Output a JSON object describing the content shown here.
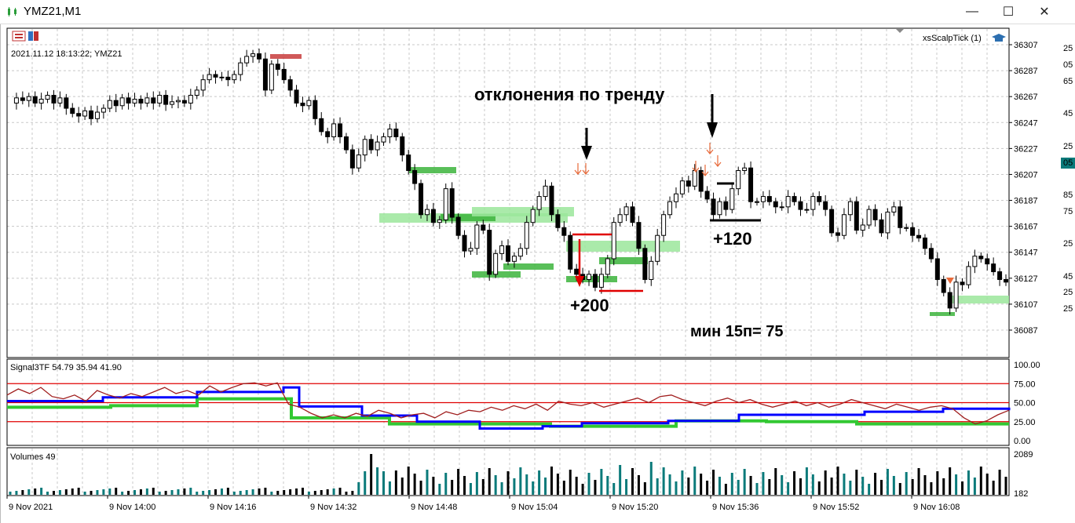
{
  "window": {
    "title": "YMZ21,M1",
    "minimize_symbol": "—",
    "maximize_symbol": "☐",
    "close_symbol": "✕"
  },
  "chart": {
    "timestamp_label": "2021.11.12 18:13:22; YMZ21",
    "indicator_name": "xsScalpTick (1)",
    "price_ticks": [
      "36307",
      "36287",
      "36267",
      "36247",
      "36227",
      "36207",
      "36187",
      "36167",
      "36147",
      "36127",
      "36107",
      "36087"
    ],
    "price_range": [
      36077,
      36317
    ],
    "annotations": {
      "trend_text": "отклонения по тренду",
      "plus200": "+200",
      "plus120": "+120",
      "min_text": "мин 15п= 75"
    },
    "right_edge_fragments": [
      "25",
      "05",
      "65",
      "45",
      "25",
      "05",
      "85",
      "75",
      "25",
      "45",
      "25",
      "25"
    ]
  },
  "signal_panel": {
    "label": "Signal3TF 54.79 35.94 41.90",
    "ticks": [
      "100.00",
      "75.00",
      "50.00",
      "25.00",
      "0.00"
    ],
    "levels": [
      75,
      50,
      25
    ]
  },
  "volume_panel": {
    "label": "Volumes 49",
    "ticks": [
      "2089",
      "182"
    ]
  },
  "time_axis": [
    "9 Nov 2021",
    "9 Nov 14:00",
    "9 Nov 14:16",
    "9 Nov 14:32",
    "9 Nov 14:48",
    "9 Nov 15:04",
    "9 Nov 15:20",
    "9 Nov 15:36",
    "9 Nov 15:52",
    "9 Nov 16:08"
  ],
  "colors": {
    "bull": "#ffffff",
    "bear": "#000000",
    "zone_green": "#3cb43c",
    "zone_light": "#9be69b",
    "zone_red": "#c83c3c",
    "level_line": "#e00000",
    "signal_blue": "#0000ff",
    "signal_green": "#32c832",
    "signal_red": "#a01e1e",
    "volume_teal": "#0a7a7a",
    "volume_black": "#000000",
    "arrow_orange": "#e86a3a"
  }
}
